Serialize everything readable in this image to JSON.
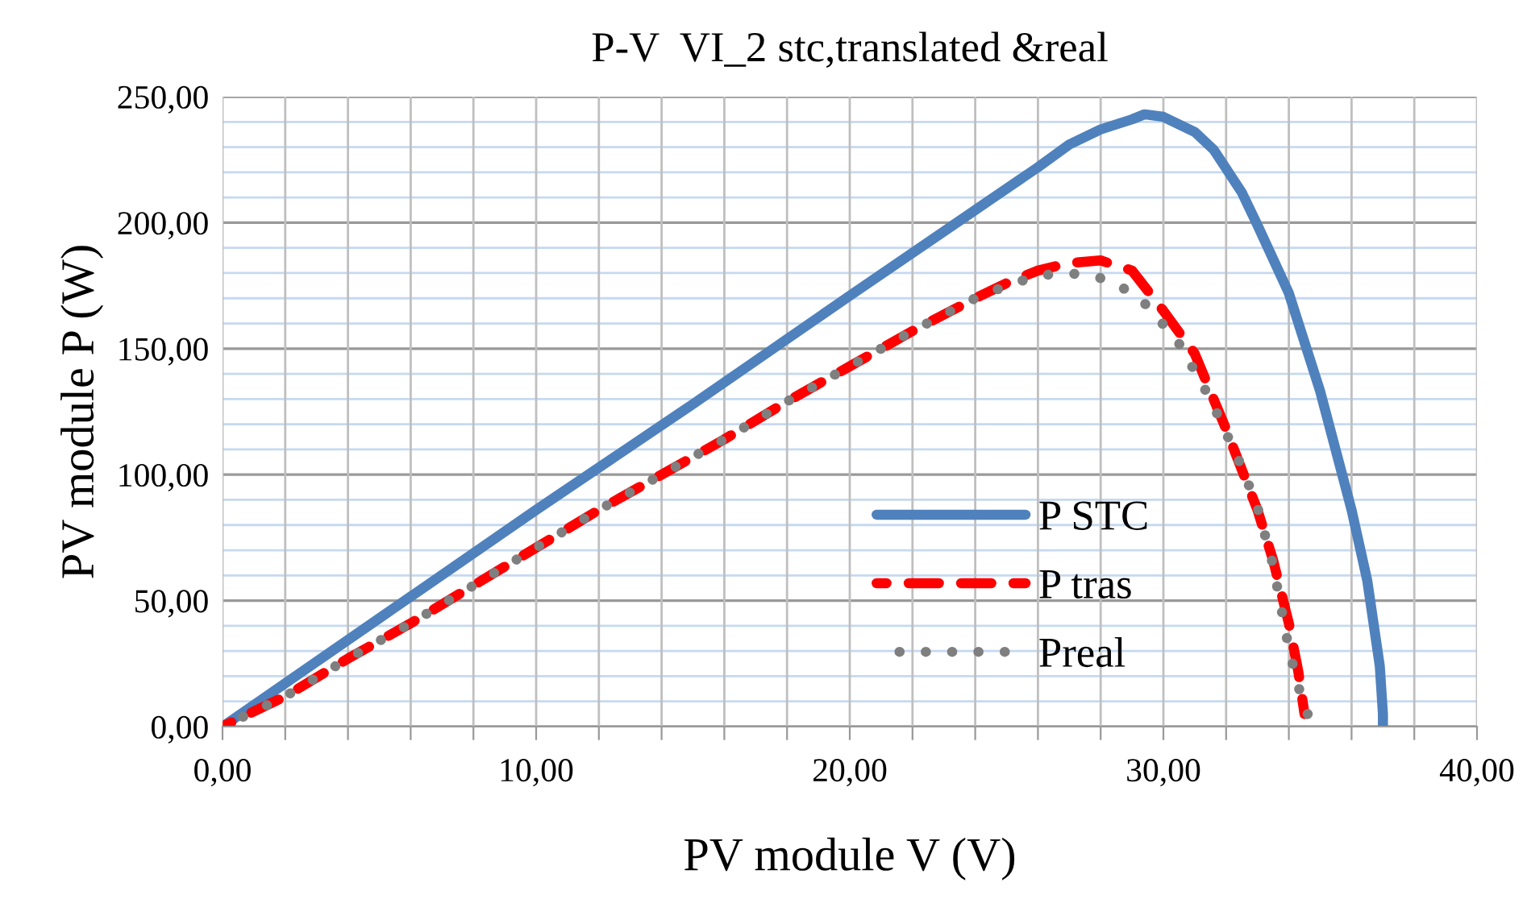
{
  "chart_data": {
    "type": "line",
    "title": "P-V  VI_2 stc,translated &real",
    "xlabel": "PV module V (V)",
    "ylabel": "PV module P (W)",
    "xlim": [
      0,
      40
    ],
    "ylim": [
      0,
      250
    ],
    "xticks": [
      {
        "value": 0,
        "label": "0,00"
      },
      {
        "value": 2,
        "label": null
      },
      {
        "value": 4,
        "label": null
      },
      {
        "value": 6,
        "label": null
      },
      {
        "value": 8,
        "label": null
      },
      {
        "value": 10,
        "label": "10,00"
      },
      {
        "value": 12,
        "label": null
      },
      {
        "value": 14,
        "label": null
      },
      {
        "value": 16,
        "label": null
      },
      {
        "value": 18,
        "label": null
      },
      {
        "value": 20,
        "label": "20,00"
      },
      {
        "value": 22,
        "label": null
      },
      {
        "value": 24,
        "label": null
      },
      {
        "value": 26,
        "label": null
      },
      {
        "value": 28,
        "label": null
      },
      {
        "value": 30,
        "label": "30,00"
      },
      {
        "value": 32,
        "label": null
      },
      {
        "value": 34,
        "label": null
      },
      {
        "value": 36,
        "label": null
      },
      {
        "value": 38,
        "label": null
      },
      {
        "value": 40,
        "label": "40,00"
      }
    ],
    "yticks": [
      {
        "value": 0,
        "label": "0,00"
      },
      {
        "value": 10,
        "label": null
      },
      {
        "value": 20,
        "label": null
      },
      {
        "value": 30,
        "label": null
      },
      {
        "value": 40,
        "label": null
      },
      {
        "value": 50,
        "label": "50,00"
      },
      {
        "value": 60,
        "label": null
      },
      {
        "value": 70,
        "label": null
      },
      {
        "value": 80,
        "label": null
      },
      {
        "value": 90,
        "label": null
      },
      {
        "value": 100,
        "label": "100,00"
      },
      {
        "value": 110,
        "label": null
      },
      {
        "value": 120,
        "label": null
      },
      {
        "value": 130,
        "label": null
      },
      {
        "value": 140,
        "label": null
      },
      {
        "value": 150,
        "label": "150,00"
      },
      {
        "value": 160,
        "label": null
      },
      {
        "value": 170,
        "label": null
      },
      {
        "value": 180,
        "label": null
      },
      {
        "value": 190,
        "label": null
      },
      {
        "value": 200,
        "label": "200,00"
      },
      {
        "value": 210,
        "label": null
      },
      {
        "value": 220,
        "label": null
      },
      {
        "value": 230,
        "label": null
      },
      {
        "value": 240,
        "label": null
      },
      {
        "value": 250,
        "label": "250,00"
      }
    ],
    "grid": true,
    "legend": "bottom",
    "series": [
      {
        "name": "P STC",
        "color": "#4f81bd",
        "line_style": "solid",
        "x": [
          0,
          5,
          10,
          15,
          20,
          24,
          26,
          27,
          28,
          29,
          29.4,
          30,
          31,
          31.6,
          32.5,
          33,
          34,
          35,
          36,
          36.5,
          36.9,
          37,
          37
        ],
        "values": [
          0,
          43,
          86,
          128,
          171,
          205,
          222,
          231,
          237,
          241,
          243,
          242,
          236,
          229,
          212,
          199,
          172,
          133,
          86,
          58,
          24,
          5,
          0
        ]
      },
      {
        "name": "P tras",
        "color": "#ff0000",
        "line_style": "dashed",
        "x": [
          0,
          2,
          4,
          6,
          8,
          10,
          12,
          14,
          16,
          18,
          20,
          22,
          24,
          25,
          26,
          27,
          28,
          29,
          30,
          31,
          32,
          33,
          33.5,
          34,
          34.3,
          34.5
        ],
        "values": [
          0,
          12,
          27,
          41,
          56,
          71,
          86,
          100,
          114,
          129,
          143,
          157,
          170,
          176,
          181,
          184,
          185,
          181,
          165,
          148,
          118,
          86,
          66,
          41,
          22,
          5
        ]
      },
      {
        "name": "Preal",
        "color": "#7f7f7f",
        "line_style": "dotted",
        "x": [
          0,
          2,
          4,
          6,
          8,
          10,
          12,
          14,
          16,
          18,
          20,
          22,
          24,
          25,
          26,
          27,
          28,
          28.5,
          29.5,
          30.5,
          31.5,
          32.5,
          33,
          33.5,
          34,
          34.3,
          34.6
        ],
        "values": [
          0,
          12,
          27,
          41,
          56,
          71,
          86,
          100,
          114,
          129,
          143,
          157,
          170,
          175,
          179,
          180,
          178,
          176,
          167,
          152,
          130,
          103,
          87,
          64,
          31,
          16,
          5
        ]
      }
    ]
  }
}
